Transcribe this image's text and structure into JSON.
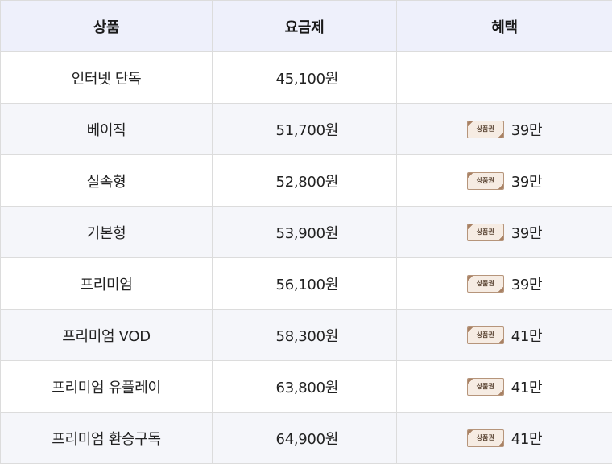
{
  "header": {
    "product": "상품",
    "price": "요금제",
    "benefit": "혜택"
  },
  "voucher_label": "상품권",
  "rows": [
    {
      "product": "인터넷 단독",
      "price": "45,100원",
      "benefit": ""
    },
    {
      "product": "베이직",
      "price": "51,700원",
      "benefit": "39만"
    },
    {
      "product": "실속형",
      "price": "52,800원",
      "benefit": "39만"
    },
    {
      "product": "기본형",
      "price": "53,900원",
      "benefit": "39만"
    },
    {
      "product": "프리미엄",
      "price": "56,100원",
      "benefit": "39만"
    },
    {
      "product": "프리미엄 VOD",
      "price": "58,300원",
      "benefit": "41만"
    },
    {
      "product": "프리미엄 유플레이",
      "price": "63,800원",
      "benefit": "41만"
    },
    {
      "product": "프리미엄 환승구독",
      "price": "64,900원",
      "benefit": "41만"
    }
  ],
  "colors": {
    "header_bg": "#eef0fb",
    "stripe_bg": "#f5f6fa",
    "border": "#dcdcdc",
    "voucher_bg": "#f6ece3",
    "voucher_border": "#b6957b"
  },
  "icons": {
    "voucher": "gift-voucher-icon"
  }
}
